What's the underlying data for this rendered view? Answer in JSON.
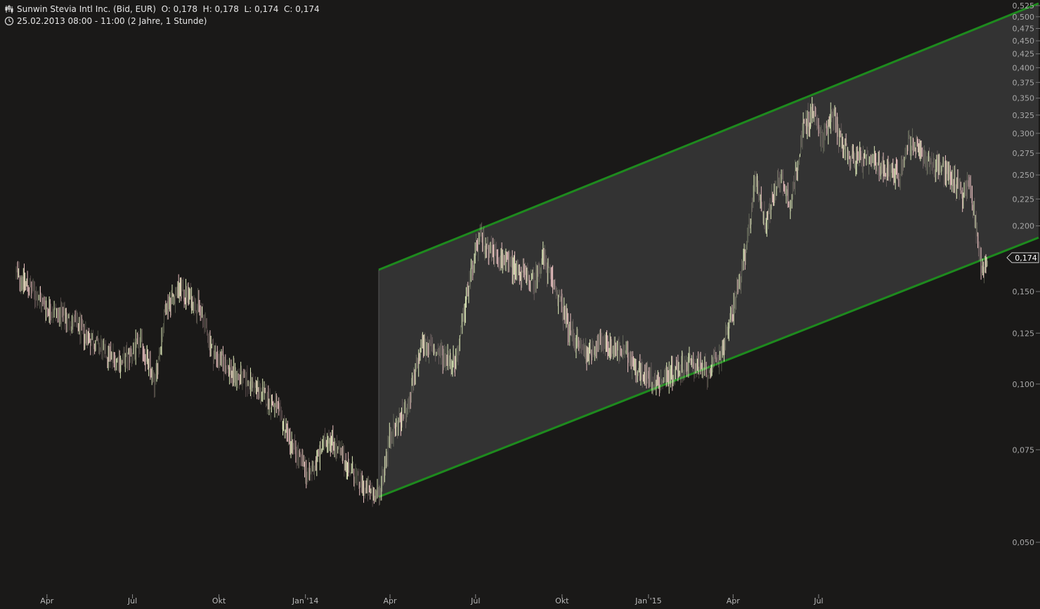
{
  "header": {
    "instrument": "Sunwin Stevia Intl Inc. (Bid, EUR)",
    "ohlc": "O: 0,178  H: 0,178  L: 0,174  C: 0,174",
    "period": "25.02.2013 08:00 - 11:00 (2 Jahre, 1 Stunde)",
    "chart_icon": "candlestick-icon",
    "clock_icon": "clock-icon"
  },
  "chart_data": {
    "type": "candlestick",
    "y_scale": "log",
    "ylim": [
      0.045,
      0.53
    ],
    "y_ticks": [
      "0,050",
      "0,075",
      "0,100",
      "0,125",
      "0,150",
      "0,174",
      "0,200",
      "0,225",
      "0,250",
      "0,275",
      "0,300",
      "0,325",
      "0,350",
      "0,375",
      "0,400",
      "0,425",
      "0,450",
      "0,475",
      "0,500",
      "0,525"
    ],
    "y_tick_values": [
      0.05,
      0.075,
      0.1,
      0.125,
      0.15,
      0.174,
      0.2,
      0.225,
      0.25,
      0.275,
      0.3,
      0.325,
      0.35,
      0.375,
      0.4,
      0.425,
      0.45,
      0.475,
      0.5,
      0.525
    ],
    "x_ticks": [
      "Apr",
      "Jul",
      "Okt",
      "Jan '14",
      "Apr",
      "Jul",
      "Okt",
      "Jan '15",
      "Apr",
      "Jul"
    ],
    "x_tick_dates": [
      "2013-04-01",
      "2013-07-01",
      "2013-10-01",
      "2014-01-01",
      "2014-04-01",
      "2014-07-01",
      "2014-10-01",
      "2015-01-01",
      "2015-04-01",
      "2015-07-01"
    ],
    "last_price": "0,174",
    "last_value": 0.174,
    "price_path": [
      [
        "2013-02-25",
        0.165
      ],
      [
        "2013-03-10",
        0.155
      ],
      [
        "2013-04-01",
        0.14
      ],
      [
        "2013-05-01",
        0.13
      ],
      [
        "2013-06-01",
        0.115
      ],
      [
        "2013-06-20",
        0.11
      ],
      [
        "2013-07-10",
        0.12
      ],
      [
        "2013-07-25",
        0.1
      ],
      [
        "2013-08-05",
        0.14
      ],
      [
        "2013-08-20",
        0.152
      ],
      [
        "2013-09-10",
        0.14
      ],
      [
        "2013-09-25",
        0.115
      ],
      [
        "2013-10-15",
        0.105
      ],
      [
        "2013-11-05",
        0.1
      ],
      [
        "2013-12-01",
        0.09
      ],
      [
        "2013-12-20",
        0.075
      ],
      [
        "2014-01-05",
        0.067
      ],
      [
        "2014-01-25",
        0.08
      ],
      [
        "2014-02-15",
        0.07
      ],
      [
        "2014-03-05",
        0.063
      ],
      [
        "2014-03-20",
        0.061
      ],
      [
        "2014-04-01",
        0.08
      ],
      [
        "2014-04-20",
        0.09
      ],
      [
        "2014-05-05",
        0.12
      ],
      [
        "2014-05-20",
        0.115
      ],
      [
        "2014-06-10",
        0.11
      ],
      [
        "2014-06-25",
        0.16
      ],
      [
        "2014-07-05",
        0.19
      ],
      [
        "2014-07-25",
        0.175
      ],
      [
        "2014-08-15",
        0.165
      ],
      [
        "2014-09-01",
        0.155
      ],
      [
        "2014-09-10",
        0.175
      ],
      [
        "2014-09-25",
        0.15
      ],
      [
        "2014-10-10",
        0.125
      ],
      [
        "2014-10-25",
        0.115
      ],
      [
        "2014-11-15",
        0.12
      ],
      [
        "2014-12-05",
        0.115
      ],
      [
        "2014-12-25",
        0.105
      ],
      [
        "2015-01-10",
        0.1
      ],
      [
        "2015-01-25",
        0.105
      ],
      [
        "2015-02-15",
        0.11
      ],
      [
        "2015-03-05",
        0.105
      ],
      [
        "2015-03-20",
        0.115
      ],
      [
        "2015-04-01",
        0.14
      ],
      [
        "2015-04-15",
        0.18
      ],
      [
        "2015-04-25",
        0.25
      ],
      [
        "2015-05-05",
        0.2
      ],
      [
        "2015-05-20",
        0.25
      ],
      [
        "2015-06-01",
        0.22
      ],
      [
        "2015-06-15",
        0.31
      ],
      [
        "2015-06-25",
        0.33
      ],
      [
        "2015-07-05",
        0.29
      ],
      [
        "2015-07-15",
        0.33
      ],
      [
        "2015-07-25",
        0.29
      ],
      [
        "2015-08-05",
        0.27
      ],
      [
        "2015-08-20",
        0.265
      ],
      [
        "2015-09-05",
        0.26
      ],
      [
        "2015-09-25",
        0.25
      ],
      [
        "2015-10-05",
        0.29
      ],
      [
        "2015-10-20",
        0.27
      ],
      [
        "2015-11-05",
        0.26
      ],
      [
        "2015-11-20",
        0.25
      ],
      [
        "2015-12-01",
        0.23
      ],
      [
        "2015-12-08",
        0.24
      ],
      [
        "2015-12-15",
        0.2
      ],
      [
        "2015-12-22",
        0.165
      ],
      [
        "2015-12-28",
        0.174
      ]
    ],
    "channel": {
      "upper": [
        [
          "2014-03-20",
          0.165
        ],
        [
          "2016-02-20",
          0.53
        ]
      ],
      "lower": [
        [
          "2014-03-20",
          0.061
        ],
        [
          "2016-02-20",
          0.19
        ]
      ]
    },
    "colors": {
      "background": "#1a1918",
      "channel_fill": "#333333",
      "channel_line": "#1e8a1e",
      "up_candle": "#e8f5c0",
      "down_candle": "#f4c8c8",
      "axis_text": "#a8a8a8"
    }
  }
}
